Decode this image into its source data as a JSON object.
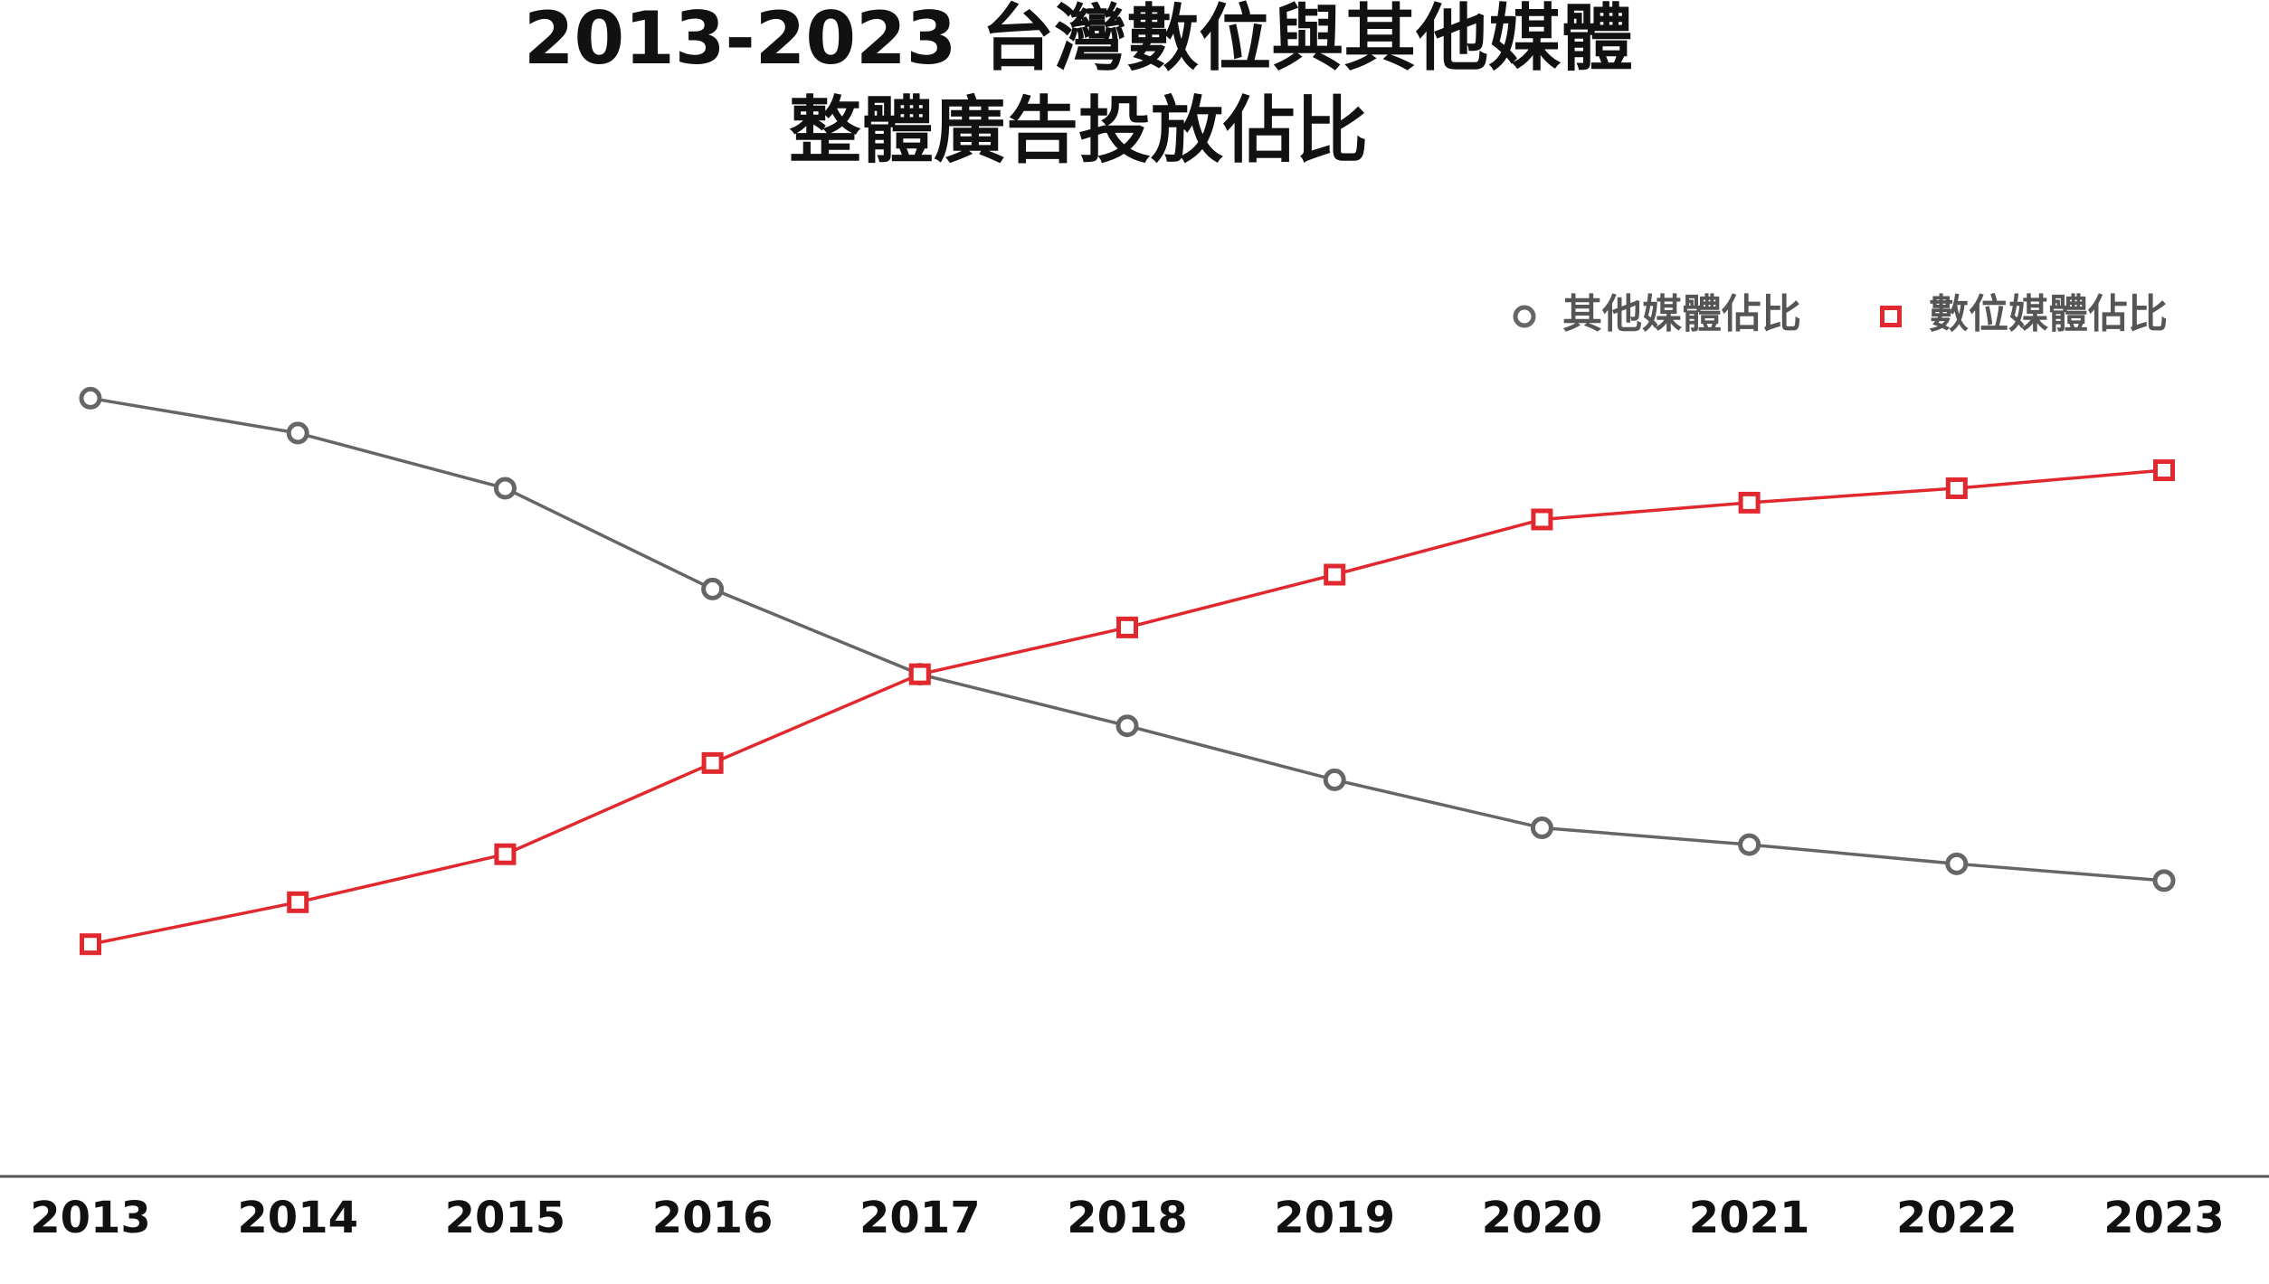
{
  "chart_data": {
    "type": "line",
    "title": [
      "2013-2023 台灣數位與其他媒體",
      "整體廣告投放佔比"
    ],
    "categories": [
      "2013",
      "2014",
      "2015",
      "2016",
      "2017",
      "2018",
      "2019",
      "2020",
      "2021",
      "2022",
      "2023"
    ],
    "series": [
      {
        "name": "其他媒體佔比",
        "color": "#666666",
        "marker": "circle",
        "values": [
          73,
          70.1,
          65.5,
          57.1,
          50,
          45.7,
          41.2,
          37.2,
          35.8,
          34.2,
          32.8
        ]
      },
      {
        "name": "數位媒體佔比",
        "color": "#e0282e",
        "marker": "square",
        "values": [
          27.5,
          31,
          35,
          42.6,
          50,
          53.9,
          58.3,
          62.9,
          64.3,
          65.5,
          67
        ]
      }
    ],
    "ylim": [
      8,
      82
    ],
    "legend": "top-right",
    "grid": false
  }
}
